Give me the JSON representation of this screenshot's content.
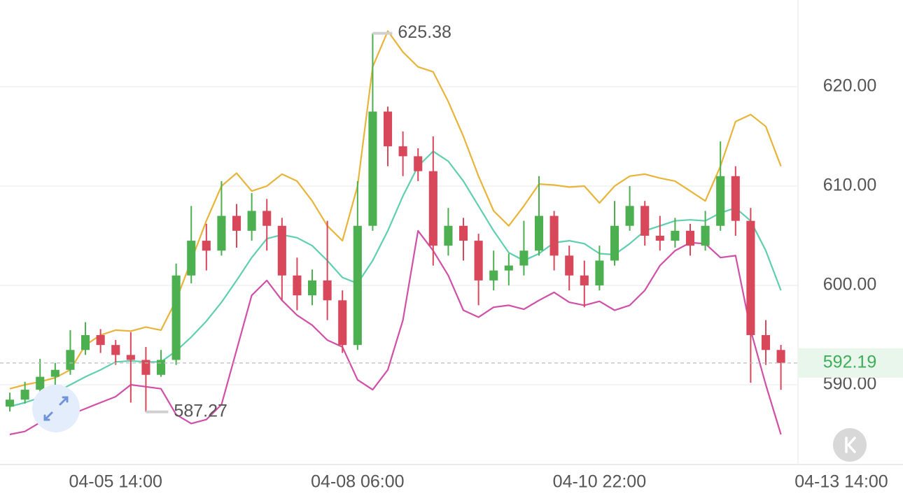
{
  "chart_data": {
    "type": "candlestick",
    "categories": [
      null,
      null,
      null,
      null,
      null,
      null,
      null,
      null,
      null,
      null,
      null,
      null,
      null,
      null,
      null,
      null,
      null,
      null,
      null,
      null,
      null,
      null,
      null,
      null,
      null,
      null,
      null,
      null,
      null,
      null,
      null,
      null,
      null,
      null,
      null,
      null,
      null,
      null,
      null,
      null,
      null,
      null,
      null,
      null,
      null,
      null,
      null,
      null,
      null,
      null,
      null,
      null
    ],
    "open": [
      587.8,
      588.5,
      589.5,
      590.8,
      591.5,
      593.5,
      595.0,
      594.0,
      593.0,
      592.5,
      591.0,
      592.5,
      601.0,
      604.5,
      603.5,
      607.0,
      605.5,
      607.5,
      606.0,
      601.0,
      599.0,
      600.5,
      598.5,
      594.0,
      606.0,
      617.5,
      614.0,
      613.0,
      611.5,
      604.0,
      606.0,
      604.5,
      600.5,
      601.5,
      602.0,
      603.5,
      607.0,
      603.0,
      601.0,
      600.0,
      602.5,
      606.0,
      608.0,
      605.0,
      604.5,
      605.5,
      604.0,
      606.0,
      611.0,
      606.5,
      595.0,
      593.5
    ],
    "high": [
      589.2,
      590.3,
      592.6,
      592.2,
      595.5,
      596.3,
      595.6,
      594.5,
      595.3,
      593.8,
      593.5,
      602.2,
      608.0,
      606.2,
      610.5,
      608.2,
      609.3,
      608.7,
      606.8,
      602.8,
      601.6,
      606.5,
      599.5,
      610.5,
      625.38,
      618.0,
      615.5,
      613.8,
      615.0,
      607.8,
      606.8,
      605.2,
      603.5,
      603.2,
      606.5,
      611.0,
      607.5,
      604.0,
      602.5,
      604.0,
      608.5,
      610.0,
      608.5,
      607.0,
      606.8,
      606.2,
      607.5,
      614.5,
      612.0,
      607.8,
      596.5,
      594.0
    ],
    "low": [
      587.3,
      588.1,
      589.2,
      590.0,
      591.0,
      593.0,
      593.2,
      592.0,
      588.2,
      587.27,
      590.8,
      592.0,
      600.2,
      601.5,
      603.0,
      603.8,
      604.5,
      603.5,
      598.5,
      597.5,
      598.0,
      596.5,
      593.2,
      593.5,
      605.5,
      612.0,
      611.0,
      610.5,
      602.0,
      603.0,
      602.5,
      598.0,
      599.5,
      600.0,
      601.0,
      603.0,
      601.5,
      599.5,
      597.8,
      599.5,
      602.0,
      605.5,
      604.0,
      603.5,
      603.8,
      603.0,
      603.5,
      605.5,
      605.0,
      590.2,
      592.0,
      589.5
    ],
    "close": [
      588.5,
      589.5,
      590.8,
      591.5,
      593.5,
      595.0,
      594.0,
      593.0,
      592.5,
      591.0,
      592.5,
      601.0,
      604.5,
      603.5,
      607.0,
      605.5,
      607.5,
      606.0,
      601.0,
      599.0,
      600.5,
      598.5,
      594.0,
      606.0,
      617.5,
      614.0,
      613.0,
      611.5,
      604.0,
      606.0,
      604.5,
      600.5,
      601.5,
      602.0,
      603.5,
      607.0,
      603.0,
      601.0,
      600.0,
      602.5,
      606.0,
      608.0,
      605.0,
      604.5,
      605.5,
      604.0,
      606.0,
      611.0,
      606.5,
      595.0,
      593.5,
      592.19
    ],
    "up_color": "#4caf50",
    "down_color": "#d9475b",
    "series": [
      {
        "color": "#e8b43a",
        "values": [
          589.6,
          590.0,
          590.3,
          590.7,
          591.5,
          594.0,
          595.0,
          595.5,
          595.4,
          595.8,
          595.5,
          598.5,
          602.5,
          606.5,
          610.0,
          611.3,
          609.5,
          610.0,
          611.2,
          610.5,
          608.5,
          606.0,
          604.5,
          610.0,
          622.0,
          625.6,
          623.5,
          622.0,
          621.5,
          618.5,
          615.0,
          611.0,
          607.5,
          606.0,
          608.0,
          610.2,
          610.1,
          609.9,
          610.0,
          608.3,
          610.0,
          611.0,
          611.2,
          610.8,
          610.5,
          609.5,
          608.5,
          612.0,
          616.5,
          617.2,
          616.0,
          612.0
        ]
      },
      {
        "color": "#5fcfae",
        "values": [
          587.8,
          588.2,
          588.7,
          589.2,
          590.0,
          590.8,
          591.5,
          592.3,
          592.4,
          592.3,
          592.3,
          593.4,
          594.8,
          596.4,
          598.3,
          600.5,
          602.8,
          604.7,
          605.1,
          604.8,
          604.0,
          602.5,
          600.8,
          600.2,
          602.5,
          605.5,
          609.0,
          612.0,
          613.5,
          612.5,
          610.5,
          608.0,
          605.5,
          603.3,
          602.5,
          603.2,
          604.3,
          604.5,
          604.2,
          603.2,
          603.1,
          604.2,
          605.5,
          606.0,
          606.5,
          606.6,
          606.5,
          607.3,
          607.8,
          606.5,
          603.5,
          599.5
        ]
      },
      {
        "color": "#d050a8",
        "values": [
          585.0,
          585.3,
          586.2,
          586.6,
          587.0,
          587.6,
          588.2,
          588.8,
          590.0,
          589.8,
          589.6,
          587.0,
          586.1,
          586.5,
          588.0,
          593.5,
          599.0,
          600.5,
          598.5,
          597.0,
          596.0,
          594.5,
          593.8,
          590.5,
          589.5,
          591.5,
          596.5,
          605.5,
          603.5,
          601.0,
          597.5,
          596.8,
          597.8,
          598.0,
          597.6,
          598.5,
          599.3,
          598.3,
          598.0,
          598.4,
          597.5,
          598.0,
          599.5,
          602.0,
          603.5,
          604.3,
          604.2,
          602.8,
          603.0,
          595.5,
          590.0,
          585.0
        ]
      }
    ],
    "ylim": [
      581.97,
      628.73
    ],
    "yticks": [
      {
        "value": 590,
        "label": "590.00"
      },
      {
        "value": 600,
        "label": "600.00"
      },
      {
        "value": 610,
        "label": "610.00"
      },
      {
        "value": 620,
        "label": "620.00"
      }
    ],
    "xlim": [
      -0.65,
      52.13
    ],
    "xticks": [
      {
        "value": 7,
        "label": "04-05 14:00"
      },
      {
        "value": 23,
        "label": "04-08 06:00"
      },
      {
        "value": 39,
        "label": "04-10 22:00"
      },
      {
        "value": 55,
        "label": "04-13 14:00"
      }
    ],
    "grid": true
  }
}
